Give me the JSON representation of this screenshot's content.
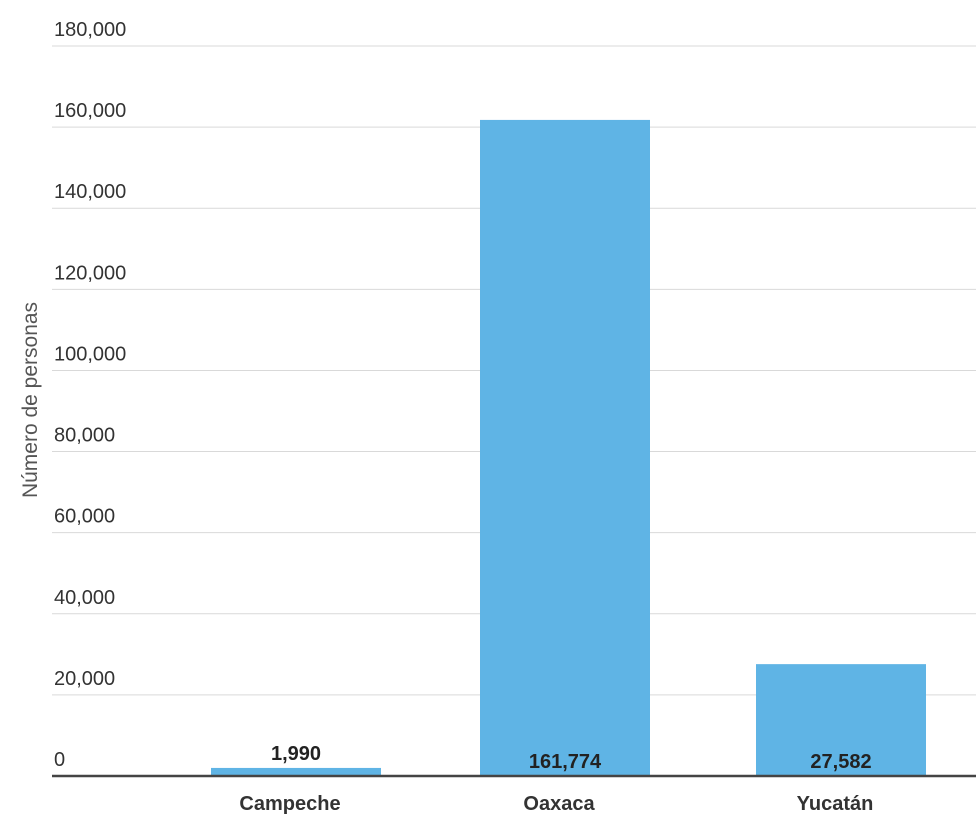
{
  "chart_data": {
    "type": "bar",
    "categories": [
      "Campeche",
      "Oaxaca",
      "Yucatán"
    ],
    "values": [
      1990,
      161774,
      27582
    ],
    "value_labels": [
      "1,990",
      "161,774",
      "27,582"
    ],
    "title": "",
    "xlabel": "",
    "ylabel": "Número de personas",
    "ylim": [
      0,
      180000
    ],
    "yticks": [
      0,
      20000,
      40000,
      60000,
      80000,
      100000,
      120000,
      140000,
      160000,
      180000
    ],
    "ytick_labels": [
      "0",
      "20,000",
      "40,000",
      "60,000",
      "80,000",
      "100,000",
      "120,000",
      "140,000",
      "160,000",
      "180,000"
    ],
    "grid": true,
    "legend": "none",
    "bar_color": "#5fb4e5"
  }
}
